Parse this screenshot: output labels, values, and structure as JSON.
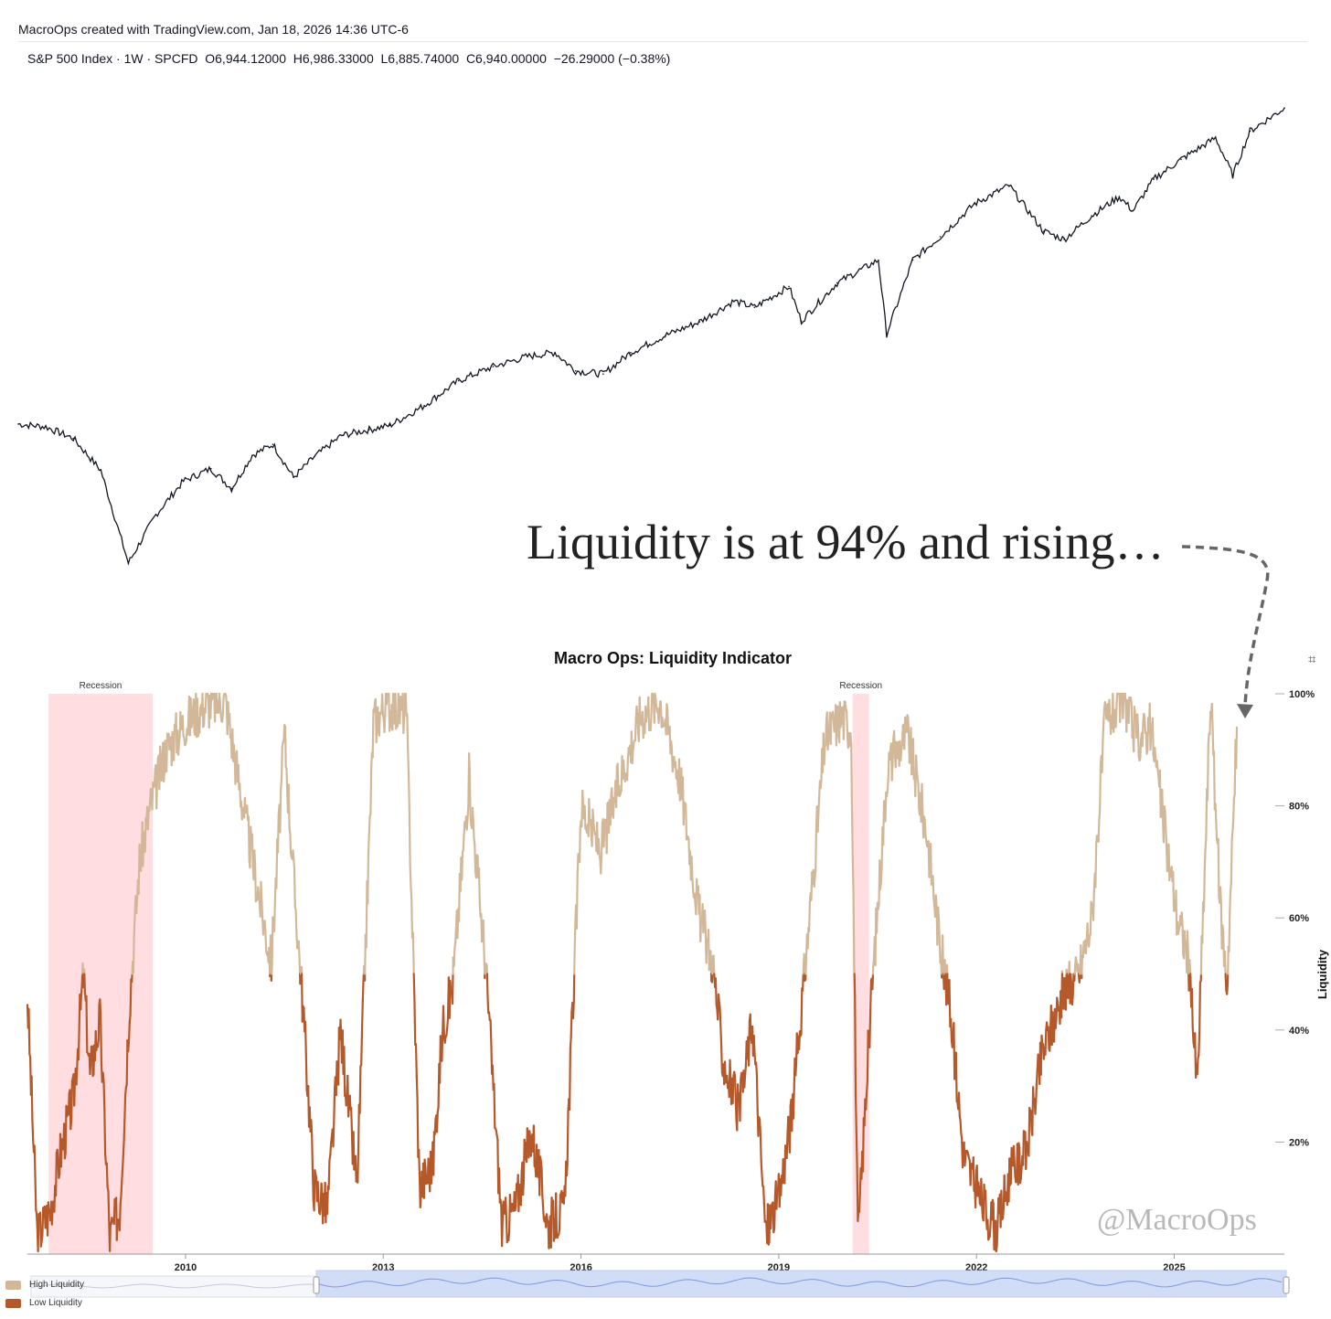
{
  "header": {
    "attribution": "MacroOps created with TradingView.com, Jan 18, 2026 14:36 UTC-6"
  },
  "price_panel": {
    "legend": "S&P 500 Index · 1W · SPCFD  O6,944.12000  H6,986.33000  L6,885.74000  C6,940.00000  −26.29000 (−0.38%)"
  },
  "annotation": {
    "text": "Liquidity is at 94% and rising…"
  },
  "liquidity_chart": {
    "title": "Macro Ops: Liquidity Indicator",
    "ylabel": "Liquidity",
    "recession_label": "Recession",
    "legend_high": "High Liquidity",
    "legend_low": "Low Liquidity",
    "watermark": "@MacroOps",
    "colors": {
      "high": "#d2b898",
      "low": "#b5582a",
      "recession": "#ffdde0",
      "price": "#131722",
      "navigator": "#c9d6f5"
    }
  },
  "icons": {
    "crop": "crop-icon",
    "arrow": "dashed-arrow-icon"
  },
  "chart_data": [
    {
      "type": "line",
      "title": "S&P 500 Index · 1W · SPCFD",
      "xlabel": "",
      "ylabel": "",
      "ylim": [
        630,
        7200
      ],
      "x": [
        2007.6,
        2008.0,
        2008.4,
        2008.8,
        2009.2,
        2009.6,
        2010.0,
        2010.4,
        2010.7,
        2011.0,
        2011.3,
        2011.6,
        2011.9,
        2012.3,
        2012.7,
        2013.0,
        2013.5,
        2014.0,
        2014.5,
        2015.0,
        2015.4,
        2015.7,
        2016.1,
        2016.5,
        2017.0,
        2017.5,
        2018.0,
        2018.3,
        2018.8,
        2018.98,
        2019.5,
        2020.1,
        2020.22,
        2020.6,
        2021.0,
        2021.5,
        2022.0,
        2022.5,
        2022.8,
        2023.2,
        2023.6,
        2023.8,
        2024.1,
        2024.5,
        2025.0,
        2025.25,
        2025.5,
        2026.0
      ],
      "series": [
        {
          "values": [
            1480,
            1460,
            1380,
            1180,
            750,
            950,
            1120,
            1190,
            1080,
            1270,
            1340,
            1140,
            1260,
            1400,
            1440,
            1470,
            1620,
            1830,
            1960,
            2060,
            2100,
            1920,
            1890,
            2100,
            2280,
            2440,
            2700,
            2620,
            2900,
            2450,
            2950,
            3300,
            2300,
            3300,
            3700,
            4350,
            4750,
            3800,
            3650,
            4100,
            4500,
            4200,
            4900,
            5400,
            6000,
            5000,
            6200,
            6940
          ]
        }
      ]
    },
    {
      "type": "area",
      "title": "Macro Ops: Liquidity Indicator",
      "xlabel": "",
      "ylabel": "Liquidity",
      "ylim": [
        0,
        100
      ],
      "xticks": [
        "2010",
        "2013",
        "2016",
        "2019",
        "2022",
        "2025"
      ],
      "yticks": [
        "20%",
        "40%",
        "60%",
        "80%",
        "100%"
      ],
      "threshold": 50,
      "recessions": [
        [
          2007.92,
          2009.5
        ],
        [
          2020.12,
          2020.37
        ]
      ],
      "x": [
        2007.6,
        2007.75,
        2007.95,
        2008.1,
        2008.3,
        2008.45,
        2008.55,
        2008.7,
        2008.85,
        2009.0,
        2009.15,
        2009.3,
        2009.45,
        2009.7,
        2010.0,
        2010.3,
        2010.6,
        2010.9,
        2011.1,
        2011.3,
        2011.5,
        2011.65,
        2011.75,
        2011.95,
        2012.15,
        2012.35,
        2012.6,
        2012.85,
        2013.05,
        2013.35,
        2013.55,
        2013.75,
        2013.9,
        2014.05,
        2014.3,
        2014.55,
        2014.8,
        2015.0,
        2015.25,
        2015.5,
        2015.75,
        2016.0,
        2016.3,
        2016.6,
        2016.9,
        2017.2,
        2017.5,
        2017.8,
        2018.0,
        2018.15,
        2018.4,
        2018.6,
        2018.8,
        2019.0,
        2019.2,
        2019.45,
        2019.7,
        2019.95,
        2020.1,
        2020.2,
        2020.4,
        2020.65,
        2020.95,
        2021.25,
        2021.45,
        2021.6,
        2021.8,
        2022.05,
        2022.3,
        2022.5,
        2022.75,
        2023.0,
        2023.3,
        2023.55,
        2023.75,
        2023.95,
        2024.2,
        2024.45,
        2024.65,
        2024.85,
        2025.05,
        2025.2,
        2025.35,
        2025.55,
        2025.7,
        2025.8,
        2025.95
      ],
      "series": [
        {
          "name": "High Liquidity",
          "values": [
            46,
            3,
            8,
            18,
            28,
            50,
            32,
            42,
            3,
            8,
            45,
            70,
            79,
            90,
            95,
            98,
            99,
            78,
            65,
            52,
            93,
            65,
            50,
            12,
            8,
            40,
            12,
            95,
            98,
            97,
            12,
            16,
            40,
            48,
            85,
            52,
            5,
            8,
            22,
            5,
            8,
            80,
            72,
            85,
            96,
            99,
            85,
            60,
            52,
            35,
            25,
            42,
            4,
            10,
            25,
            58,
            92,
            96,
            94,
            2,
            45,
            87,
            93,
            75,
            55,
            44,
            18,
            10,
            4,
            14,
            18,
            36,
            46,
            50,
            60,
            95,
            99,
            92,
            94,
            76,
            60,
            54,
            30,
            99,
            62,
            48,
            94
          ]
        }
      ]
    }
  ]
}
